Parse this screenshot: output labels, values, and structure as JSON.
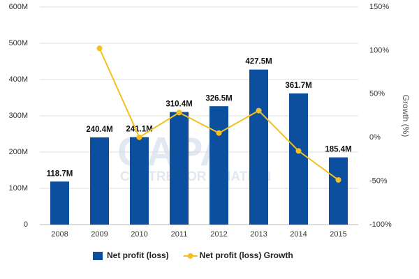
{
  "chart_data": {
    "type": "bar_line",
    "watermark": [
      "CAPA",
      "CENTRE FOR AVIATION"
    ],
    "categories": [
      "2008",
      "2009",
      "2010",
      "2011",
      "2012",
      "2013",
      "2014",
      "2015"
    ],
    "series": [
      {
        "name": "Net profit (loss)",
        "type": "bar",
        "color": "#0b4f9e",
        "values": [
          118.7,
          240.4,
          241.1,
          310.4,
          326.5,
          427.5,
          361.7,
          185.4
        ],
        "value_labels": [
          "118.7M",
          "240.4M",
          "241.1M",
          "310.4M",
          "326.5M",
          "427.5M",
          "361.7M",
          "185.4M"
        ]
      },
      {
        "name": "Net profit (loss) Growth",
        "type": "line",
        "axis": "y2",
        "color": "#f5bf1f",
        "values": [
          null,
          102.5,
          0.3,
          28.7,
          5.2,
          30.9,
          -15.4,
          -48.7
        ]
      }
    ],
    "ylim": [
      0,
      600
    ],
    "yticks": [
      0,
      {
        "value": 100,
        "label": "100M"
      },
      {
        "value": 200,
        "label": "200M"
      },
      {
        "value": 300,
        "label": "300M"
      },
      {
        "value": 400,
        "label": "400M"
      },
      {
        "value": 500,
        "label": "500M"
      },
      {
        "value": 600,
        "label": "600M"
      }
    ],
    "y2label": "Growth (%)",
    "y2lim": [
      -100,
      150
    ],
    "y2ticks": [
      {
        "value": -100,
        "label": "-100%"
      },
      {
        "value": -50,
        "label": "-50%"
      },
      {
        "value": 0,
        "label": "0%"
      },
      {
        "value": 50,
        "label": "50%"
      },
      {
        "value": 100,
        "label": "100%"
      },
      {
        "value": 150,
        "label": "150%"
      }
    ],
    "grid": true,
    "legend": "bottom"
  }
}
